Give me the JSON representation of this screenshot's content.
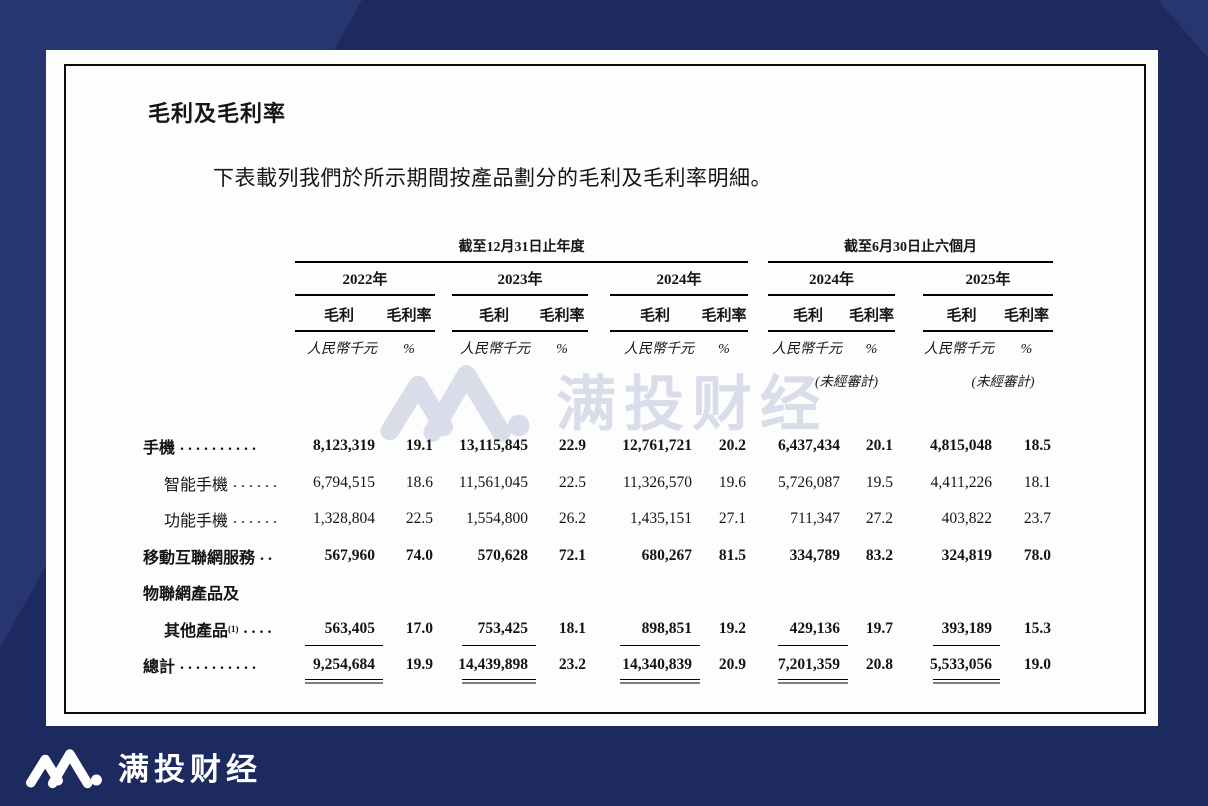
{
  "theme": {
    "background_navy": "#1d2a5f",
    "accent_navy_light": "#28366f",
    "card_white": "#fdfdfd",
    "text_color": "#141414",
    "watermark_color": "#d9dde9"
  },
  "watermark": {
    "brand": "满投财经"
  },
  "footer": {
    "brand": "满投财经"
  },
  "document": {
    "title": "毛利及毛利率",
    "intro": "下表載列我們於所示期間按產品劃分的毛利及毛利率明細。",
    "table": {
      "groups": [
        {
          "period": "截至12月31日止年度",
          "years": [
            "2022年",
            "2023年",
            "2024年"
          ]
        },
        {
          "period": "截至6月30日止六個月",
          "years": [
            "2024年",
            "2025年"
          ]
        }
      ],
      "subcols": {
        "profit": "毛利",
        "margin": "毛利率"
      },
      "units": {
        "profit": "人民幣千元",
        "margin": "%"
      },
      "unaudited": "(未經審計)",
      "rows": [
        {
          "label": "手機",
          "note": "",
          "leader": "..........",
          "indent": false,
          "bold": true,
          "rule": "none",
          "values": [
            "8,123,319",
            "19.1",
            "13,115,845",
            "22.9",
            "12,761,721",
            "20.2",
            "6,437,434",
            "20.1",
            "4,815,048",
            "18.5"
          ]
        },
        {
          "label": "智能手機",
          "note": "",
          "leader": "......",
          "indent": true,
          "bold": false,
          "rule": "none",
          "values": [
            "6,794,515",
            "18.6",
            "11,561,045",
            "22.5",
            "11,326,570",
            "19.6",
            "5,726,087",
            "19.5",
            "4,411,226",
            "18.1"
          ]
        },
        {
          "label": "功能手機",
          "note": "",
          "leader": "......",
          "indent": true,
          "bold": false,
          "rule": "none",
          "values": [
            "1,328,804",
            "22.5",
            "1,554,800",
            "26.2",
            "1,435,151",
            "27.1",
            "711,347",
            "27.2",
            "403,822",
            "23.7"
          ]
        },
        {
          "label": "移動互聯網服務",
          "note": "",
          "leader": "..",
          "indent": false,
          "bold": true,
          "rule": "none",
          "values": [
            "567,960",
            "74.0",
            "570,628",
            "72.1",
            "680,267",
            "81.5",
            "334,789",
            "83.2",
            "324,819",
            "78.0"
          ]
        },
        {
          "label": "物聯網產品及",
          "note": "",
          "leader": "",
          "indent": false,
          "bold": true,
          "rule": "none",
          "values": []
        },
        {
          "label": "其他產品",
          "note": "(1)",
          "leader": "....",
          "indent": true,
          "bold": true,
          "rule": "single",
          "values": [
            "563,405",
            "17.0",
            "753,425",
            "18.1",
            "898,851",
            "19.2",
            "429,136",
            "19.7",
            "393,189",
            "15.3"
          ]
        },
        {
          "label": "總計",
          "note": "",
          "leader": "..........",
          "indent": false,
          "bold": true,
          "rule": "double",
          "values": [
            "9,254,684",
            "19.9",
            "14,439,898",
            "23.2",
            "14,340,839",
            "20.9",
            "7,201,359",
            "20.8",
            "5,533,056",
            "19.0"
          ]
        }
      ]
    }
  }
}
